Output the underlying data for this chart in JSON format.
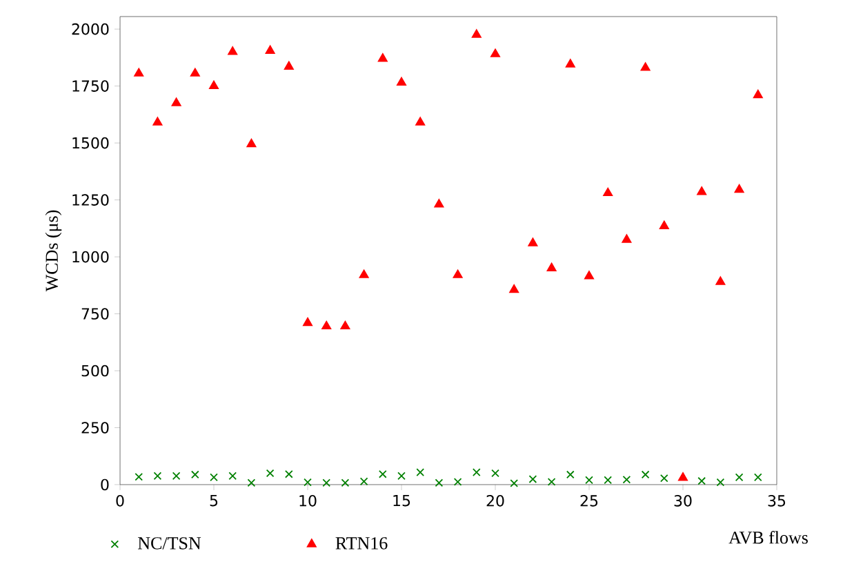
{
  "chart_data": {
    "type": "scatter",
    "xlabel": "AVB flows",
    "ylabel": "WCDs (μs)",
    "x": [
      1,
      2,
      3,
      4,
      5,
      6,
      7,
      8,
      9,
      10,
      11,
      12,
      13,
      14,
      15,
      16,
      17,
      18,
      19,
      20,
      21,
      22,
      23,
      24,
      25,
      26,
      27,
      28,
      29,
      30,
      31,
      32,
      33,
      34
    ],
    "series": [
      {
        "name": "NC/TSN",
        "color": "#008000",
        "marker": "cross",
        "values": [
          34,
          38,
          38,
          44,
          32,
          38,
          8,
          50,
          46,
          10,
          8,
          8,
          14,
          46,
          38,
          54,
          8,
          12,
          54,
          50,
          6,
          24,
          12,
          44,
          20,
          20,
          22,
          44,
          28,
          null,
          16,
          10,
          32,
          32
        ]
      },
      {
        "name": "RTN16",
        "color": "#ff0000",
        "marker": "triangle",
        "values": [
          1805,
          1590,
          1675,
          1805,
          1750,
          1900,
          1495,
          1905,
          1835,
          710,
          695,
          695,
          920,
          1870,
          1765,
          1590,
          1230,
          920,
          1975,
          1890,
          855,
          1060,
          950,
          1845,
          915,
          1280,
          1075,
          1830,
          1135,
          30,
          1285,
          890,
          1295,
          1710
        ]
      }
    ],
    "xlim": [
      0,
      35
    ],
    "xticks": [
      0,
      5,
      10,
      15,
      20,
      25,
      30,
      35
    ],
    "ylim": [
      0,
      2055
    ],
    "yticks": [
      0,
      250,
      500,
      750,
      1000,
      1250,
      1500,
      1750,
      2000
    ],
    "grid": false,
    "legend": "bottom left"
  }
}
